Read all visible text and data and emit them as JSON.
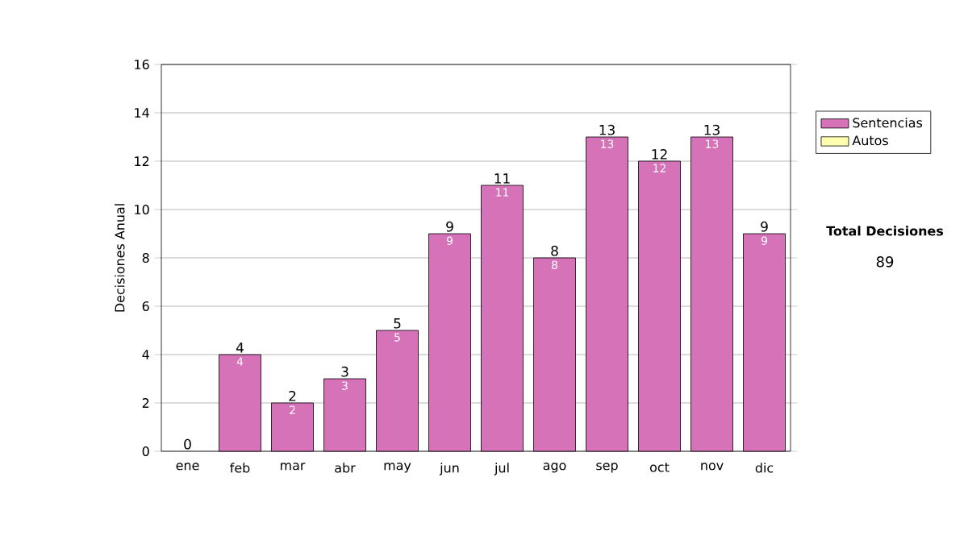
{
  "chart_data": {
    "type": "bar",
    "stacked": true,
    "ylabel": "Decisiones Anual",
    "categories": [
      "ene",
      "feb",
      "mar",
      "abr",
      "may",
      "jun",
      "jul",
      "ago",
      "sep",
      "oct",
      "nov",
      "dic"
    ],
    "series": [
      {
        "name": "Sentencias",
        "color": "#d672b8",
        "values": [
          0,
          4,
          2,
          3,
          5,
          9,
          11,
          8,
          13,
          12,
          13,
          9
        ],
        "value_labels": [
          null,
          "4",
          "2",
          "3",
          "5",
          "9",
          "11",
          "8",
          "13",
          "12",
          "13",
          "9"
        ]
      },
      {
        "name": "Autos",
        "color": "#ffffb0",
        "values": [
          0,
          0,
          0,
          0,
          0,
          0,
          0,
          0,
          0,
          0,
          0,
          0
        ]
      }
    ],
    "totals": [
      "0",
      "4",
      "2",
      "3",
      "5",
      "9",
      "11",
      "8",
      "13",
      "12",
      "13",
      "9"
    ],
    "ylim": [
      0,
      16
    ],
    "yticks": [
      0,
      2,
      4,
      6,
      8,
      10,
      12,
      14,
      16
    ],
    "grid": "y",
    "legend": "right",
    "annotations": [
      "Total Decisiones",
      "89"
    ]
  }
}
